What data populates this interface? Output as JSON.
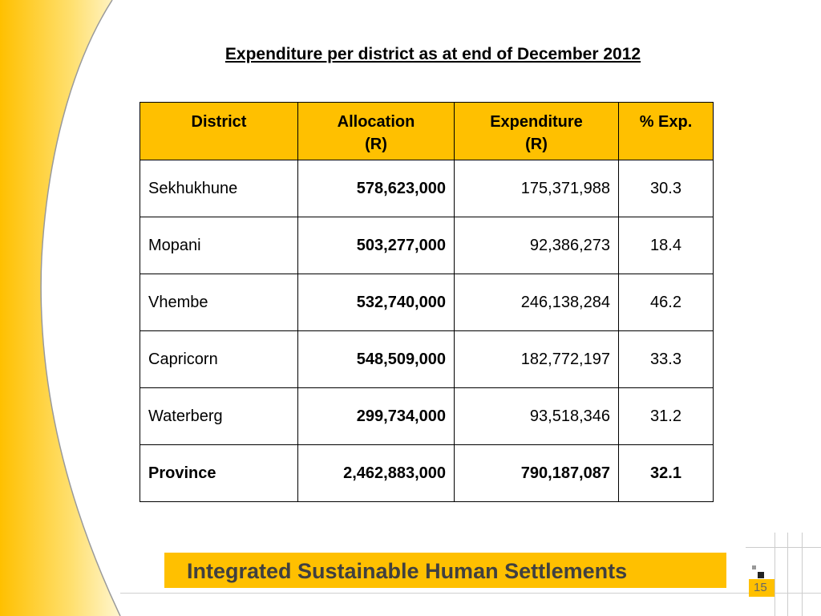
{
  "title": "Expenditure per district as at end of December 2012",
  "colors": {
    "accent": "#FFC000",
    "banner_text": "#404040"
  },
  "table": {
    "headers": [
      {
        "line1": "District",
        "line2": ""
      },
      {
        "line1": "Allocation",
        "line2": "(R)"
      },
      {
        "line1": "Expenditure",
        "line2": "(R)"
      },
      {
        "line1": "% Exp.",
        "line2": ""
      }
    ],
    "rows": [
      {
        "district": "Sekhukhune",
        "allocation": "578,623,000",
        "expenditure": "175,371,988",
        "pct": "30.3"
      },
      {
        "district": "Mopani",
        "allocation": "503,277,000",
        "expenditure": "92,386,273",
        "pct": "18.4"
      },
      {
        "district": "Vhembe",
        "allocation": "532,740,000",
        "expenditure": "246,138,284",
        "pct": "46.2"
      },
      {
        "district": "Capricorn",
        "allocation": "548,509,000",
        "expenditure": "182,772,197",
        "pct": "33.3"
      },
      {
        "district": "Waterberg",
        "allocation": "299,734,000",
        "expenditure": "93,518,346",
        "pct": "31.2"
      }
    ],
    "total": {
      "district": "Province",
      "allocation": "2,462,883,000",
      "expenditure": "790,187,087",
      "pct": "32.1"
    }
  },
  "footer": {
    "banner": "Integrated Sustainable Human Settlements",
    "page_number": "15"
  }
}
